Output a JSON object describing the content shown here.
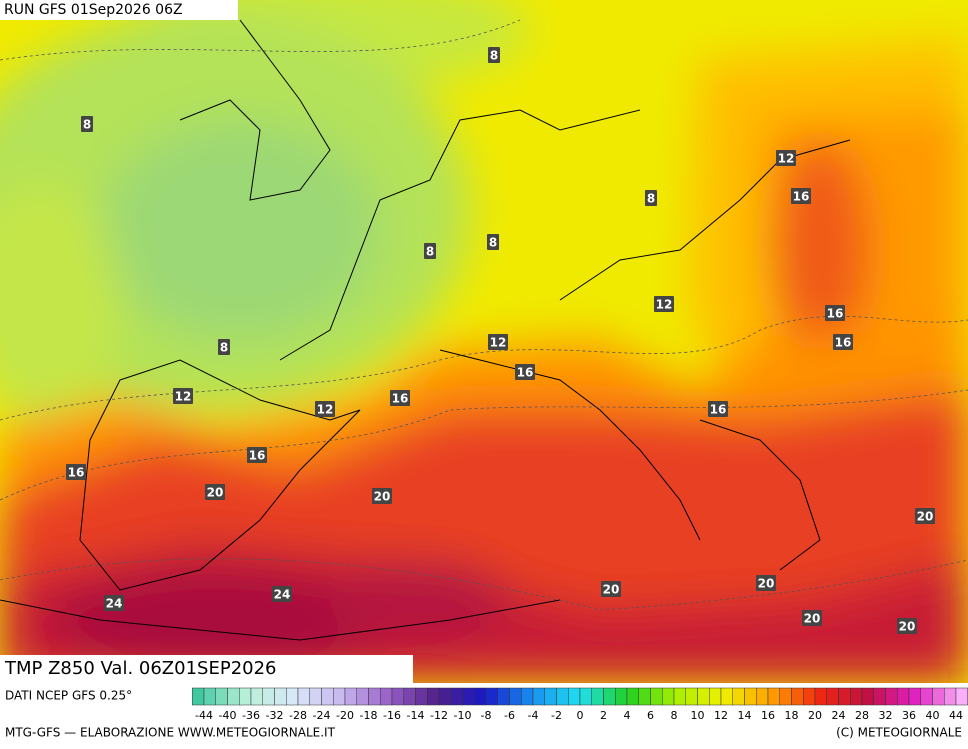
{
  "header": {
    "run": "RUN GFS 01Sep2026 06Z"
  },
  "map": {
    "field": "TMP Z850 Val. 06Z01SEP2026",
    "contour_labels": [
      8,
      8,
      8,
      8,
      8,
      8,
      12,
      12,
      12,
      12,
      12,
      16,
      16,
      16,
      16,
      16,
      16,
      16,
      16,
      20,
      20,
      20,
      20,
      20,
      20,
      20,
      24,
      24
    ]
  },
  "footer": {
    "source": "DATI NCEP GFS 0.25°",
    "credit": "MTG-GFS — ELABORAZIONE WWW.METEOGIORNALE.IT",
    "copyright": "(C) METEOGIORNALE",
    "scale_labels": [
      -44,
      -40,
      -36,
      -32,
      -28,
      -24,
      -20,
      -18,
      -16,
      -14,
      -12,
      -10,
      -8,
      -6,
      -4,
      -2,
      0,
      2,
      4,
      6,
      8,
      10,
      12,
      14,
      16,
      18,
      20,
      24,
      28,
      32,
      36,
      40,
      44
    ]
  }
}
